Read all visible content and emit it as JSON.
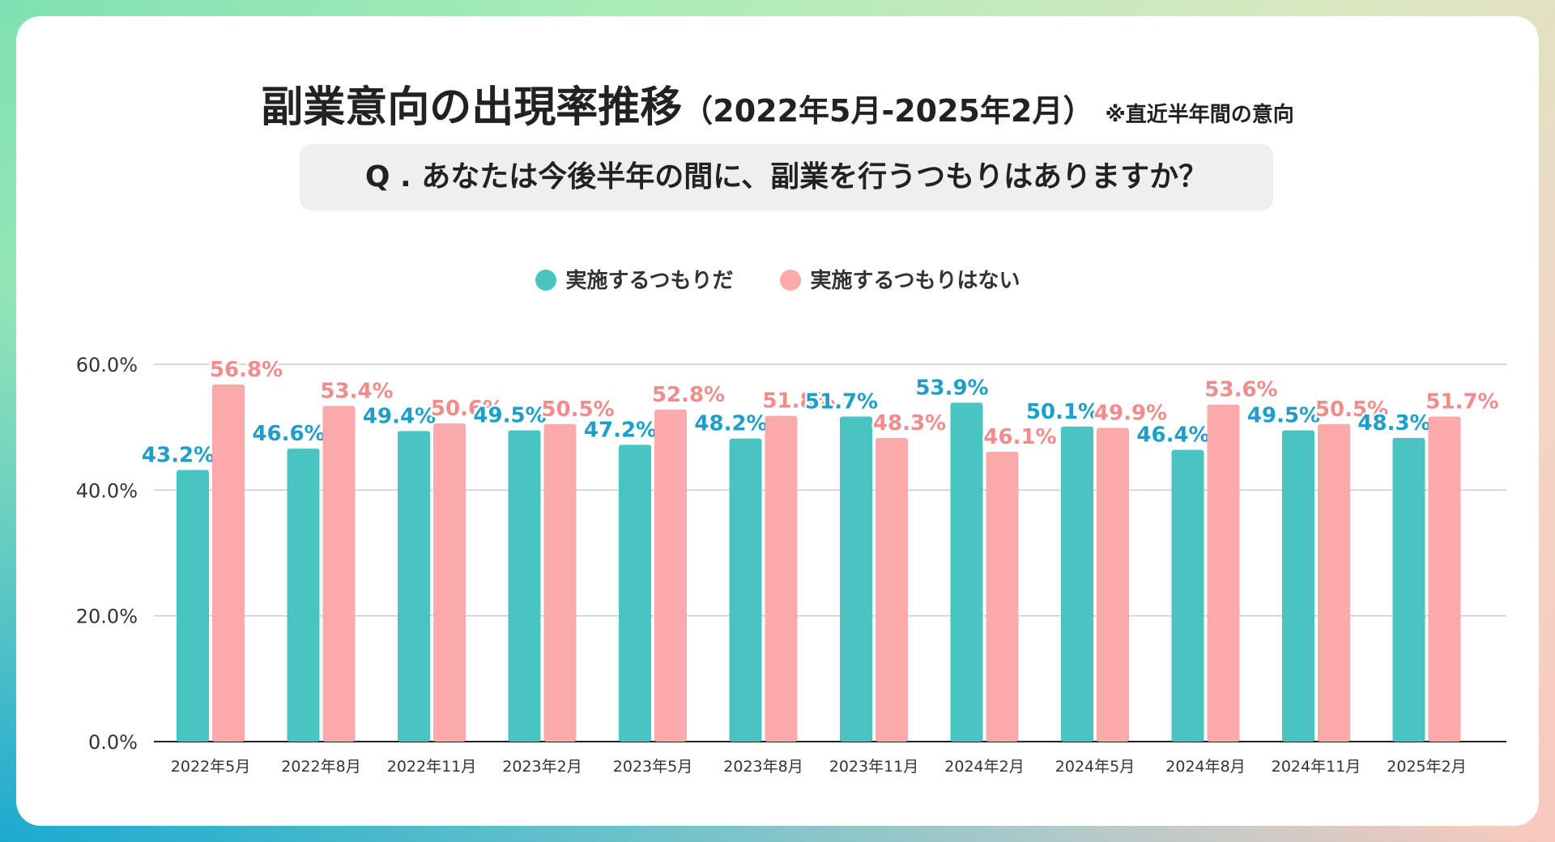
{
  "title": {
    "main": "副業意向の出現率推移",
    "sub": "（2022年5月-2025年2月）",
    "note": "※直近半年間の意向"
  },
  "question": "Q . あなたは今後半年の間に、副業を行うつもりはありますか？",
  "colors": {
    "series_a": "#4ac4c2",
    "series_b": "#fbaaac",
    "label_a": "#1e9fcb",
    "label_b": "#f28c8c",
    "grid": "#cccccc",
    "axis": "#222222"
  },
  "chart_data": {
    "type": "bar",
    "title": "副業意向の出現率推移",
    "categories": [
      "2022年5月",
      "2022年8月",
      "2022年11月",
      "2023年2月",
      "2023年5月",
      "2023年8月",
      "2023年11月",
      "2024年2月",
      "2024年5月",
      "2024年8月",
      "2024年11月",
      "2025年2月"
    ],
    "series": [
      {
        "name": "実施するつもりだ",
        "values": [
          43.2,
          46.6,
          49.4,
          49.5,
          47.2,
          48.2,
          51.7,
          53.9,
          50.1,
          46.4,
          49.5,
          48.3
        ]
      },
      {
        "name": "実施するつもりはない",
        "values": [
          56.8,
          53.4,
          50.6,
          50.5,
          52.8,
          51.8,
          48.3,
          46.1,
          49.9,
          53.6,
          50.5,
          51.7
        ]
      }
    ],
    "yticks": [
      "0.0%",
      "20.0%",
      "40.0%",
      "60.0%"
    ],
    "ylim": [
      0,
      60
    ],
    "grid": true,
    "legend": "top-center",
    "value_suffix": "%"
  }
}
